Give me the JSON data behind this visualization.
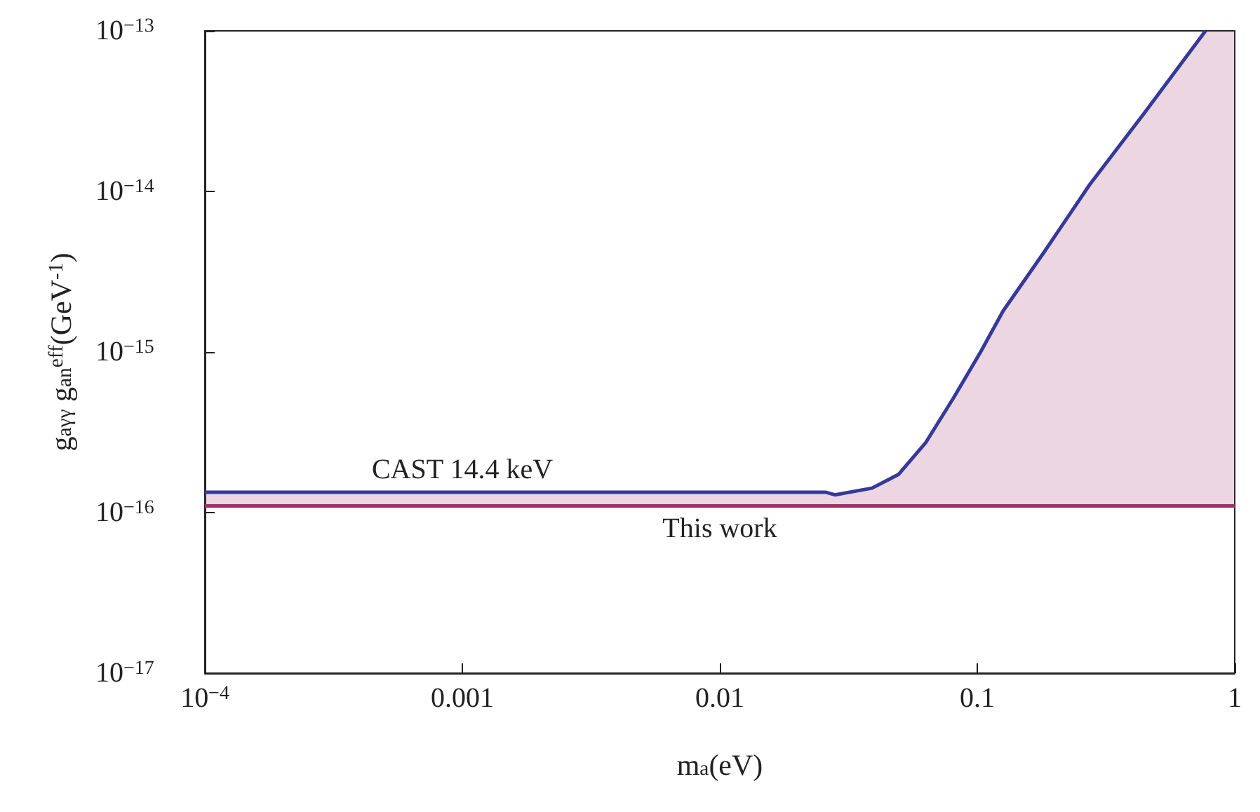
{
  "chart_data": {
    "type": "line",
    "xlabel": "m$_{a}$(eV)",
    "ylabel": "g$_{aγγ}$ g$_{an}$$^{eff}$(GeV$^{-1}$)",
    "log": "xy",
    "grid": false,
    "legend": false,
    "marker": "none",
    "line_style": "solid",
    "xlim": [
      0.0001,
      1
    ],
    "xticks": [
      {
        "value": 0.0001,
        "label": "10$^{−4}$"
      },
      0.001,
      0.01,
      0.1,
      1
    ],
    "ylim": [
      1e-17,
      1e-13
    ],
    "yticks": [
      {
        "value": 1e-17,
        "label": "10$^{−17}$"
      },
      {
        "value": 1e-16,
        "label": "10$^{−16}$"
      },
      {
        "value": 1e-15,
        "label": "10$^{−15}$"
      },
      {
        "value": 1e-14,
        "label": "10$^{−14}$"
      },
      {
        "value": 1e-13,
        "label": "10$^{−13}$"
      }
    ],
    "series": [
      {
        "name": "CAST 14.4 keV",
        "color": "#353a9a",
        "x": [
          0.0001,
          0.001,
          0.0257,
          0.028,
          0.039,
          0.0495,
          0.063,
          0.081,
          0.103,
          0.126,
          0.182,
          0.273,
          0.447,
          0.77
        ],
        "values": [
          1.34e-16,
          1.34e-16,
          1.34e-16,
          1.29e-16,
          1.42e-16,
          1.73e-16,
          2.72e-16,
          5.2e-16,
          1e-15,
          1.8e-15,
          4.2e-15,
          1.1e-14,
          3.1e-14,
          1e-13
        ]
      },
      {
        "name": "This work",
        "color": "#a0306a",
        "x": [
          0.0001,
          0.01,
          0.0257,
          0.028,
          0.039,
          0.0495,
          0.063,
          0.081,
          0.103,
          0.126,
          0.182,
          0.273,
          0.447,
          0.77,
          1
        ],
        "values": [
          1.1e-16,
          1.1e-16,
          1.1e-16,
          1.1e-16,
          1.1e-16,
          1.1e-16,
          1.1e-16,
          1.1e-16,
          1.1e-16,
          1.1e-16,
          1.1e-16,
          1.1e-16,
          1.1e-16,
          1.1e-16,
          1.1e-16
        ],
        "lower": [
          1.1e-16,
          1.1e-16,
          1.1e-16,
          1.1e-16,
          1.1e-16,
          1.1e-16,
          1.1e-16,
          1.1e-16,
          1.1e-16,
          1.1e-16,
          1.1e-16,
          1.1e-16,
          1.1e-16,
          1.1e-16,
          1.1e-16
        ],
        "upper": [
          1.34e-16,
          1.34e-16,
          1.34e-16,
          1.29e-16,
          1.42e-16,
          1.73e-16,
          2.72e-16,
          5.2e-16,
          1e-15,
          1.8e-15,
          4.2e-15,
          1.1e-14,
          3.1e-14,
          1e-13,
          1e-13
        ]
      }
    ]
  }
}
